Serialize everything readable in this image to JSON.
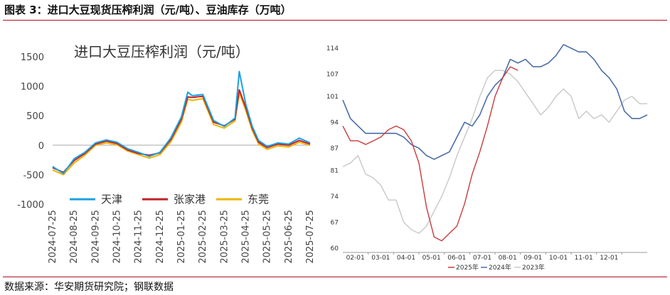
{
  "figure_title": "图表 3：进口大豆现货压榨利润（元/吨）、豆油库存（万吨）",
  "source": "数据来源：华安期货研究院；钢联数据",
  "colors": {
    "rule": "#b01020",
    "tianjin": "#1aa0e0",
    "zhangjiagang": "#c0202a",
    "dongguan": "#f0b400",
    "y2025": "#c83c3c",
    "y2024": "#4a6ea8",
    "y2023": "#c8c8c8"
  },
  "chart_data": [
    {
      "type": "line",
      "title": "进口大豆压榨利润（元/吨）",
      "ylim": [
        -1000,
        1500
      ],
      "yticks": [
        -1000,
        -500,
        0,
        500,
        1000,
        1500
      ],
      "xticks": [
        "2024-07-25",
        "2024-08-25",
        "2024-09-25",
        "2024-10-25",
        "2024-11-25",
        "2024-12-25",
        "2025-01-25",
        "2025-02-25",
        "2025-03-25",
        "2025-04-25",
        "2025-05-25",
        "2025-06-25",
        "2025-07-25"
      ],
      "x": [
        0,
        0.5,
        1,
        1.5,
        2,
        2.5,
        3,
        3.5,
        4,
        4.5,
        5,
        5.5,
        6,
        6.3,
        6.5,
        7,
        7.5,
        8,
        8.5,
        8.7,
        9,
        9.3,
        9.6,
        10,
        10.5,
        11,
        11.5,
        12
      ],
      "series": [
        {
          "name": "天津",
          "values": [
            -360,
            -480,
            -230,
            -120,
            40,
            90,
            50,
            -60,
            -120,
            -190,
            -120,
            120,
            480,
            900,
            840,
            860,
            420,
            320,
            460,
            1250,
            700,
            320,
            80,
            -20,
            40,
            20,
            120,
            40
          ]
        },
        {
          "name": "张家港",
          "values": [
            -380,
            -460,
            -260,
            -140,
            20,
            70,
            30,
            -80,
            -140,
            -170,
            -130,
            90,
            440,
            820,
            810,
            830,
            390,
            330,
            440,
            940,
            640,
            290,
            50,
            -40,
            20,
            0,
            80,
            20
          ]
        },
        {
          "name": "东莞",
          "values": [
            -420,
            -500,
            -300,
            -170,
            0,
            40,
            10,
            -100,
            -160,
            -220,
            -160,
            50,
            390,
            780,
            760,
            790,
            350,
            290,
            410,
            890,
            590,
            250,
            20,
            -70,
            -10,
            -30,
            50,
            0
          ]
        }
      ]
    },
    {
      "type": "line",
      "ylim": [
        60,
        114
      ],
      "yticks": [
        60,
        67,
        74,
        81,
        87,
        94,
        101,
        107,
        114
      ],
      "xticks": [
        "02-01",
        "03-01",
        "04-01",
        "05-01",
        "06-01",
        "07-01",
        "08-01",
        "09-01",
        "10-01",
        "11-01",
        "12-01"
      ],
      "x": [
        0.0,
        0.3,
        0.6,
        0.9,
        1.2,
        1.5,
        1.8,
        2.1,
        2.4,
        2.7,
        3.0,
        3.3,
        3.6,
        3.9,
        4.2,
        4.5,
        4.8,
        5.1,
        5.4,
        5.7,
        6.0,
        6.3,
        6.6,
        6.9,
        7.2,
        7.5,
        7.8,
        8.1,
        8.4,
        8.7,
        9.0,
        9.3,
        9.6,
        9.9,
        10.2,
        10.5,
        10.8,
        11.1,
        11.4,
        11.7,
        12.0
      ],
      "series": [
        {
          "name": "2025年",
          "values": [
            93,
            89,
            89,
            88,
            89,
            90,
            92,
            93,
            92,
            89,
            83,
            71,
            63,
            62,
            64,
            66,
            72,
            80,
            86,
            93,
            101,
            106,
            109,
            108,
            null,
            null,
            null,
            null,
            null,
            null,
            null,
            null,
            null,
            null,
            null,
            null,
            null,
            null,
            null,
            null,
            null
          ]
        },
        {
          "name": "2024年",
          "values": [
            100,
            95,
            93,
            91,
            91,
            91,
            91,
            91,
            90,
            88,
            87,
            85,
            84,
            85,
            86,
            90,
            94,
            93,
            96,
            101,
            104,
            106,
            111,
            110,
            111,
            109,
            109,
            110,
            112,
            115,
            114,
            113,
            113,
            111,
            108,
            106,
            103,
            97,
            95,
            95,
            96
          ]
        },
        {
          "name": "2023年",
          "values": [
            82,
            83,
            85,
            80,
            79,
            77,
            73,
            73,
            67,
            65,
            64,
            66,
            70,
            74,
            79,
            85,
            90,
            95,
            101,
            106,
            108,
            108,
            107,
            105,
            102,
            99,
            96,
            98,
            101,
            103,
            101,
            95,
            97,
            95,
            96,
            94,
            97,
            100,
            101,
            99,
            99
          ]
        }
      ]
    }
  ]
}
